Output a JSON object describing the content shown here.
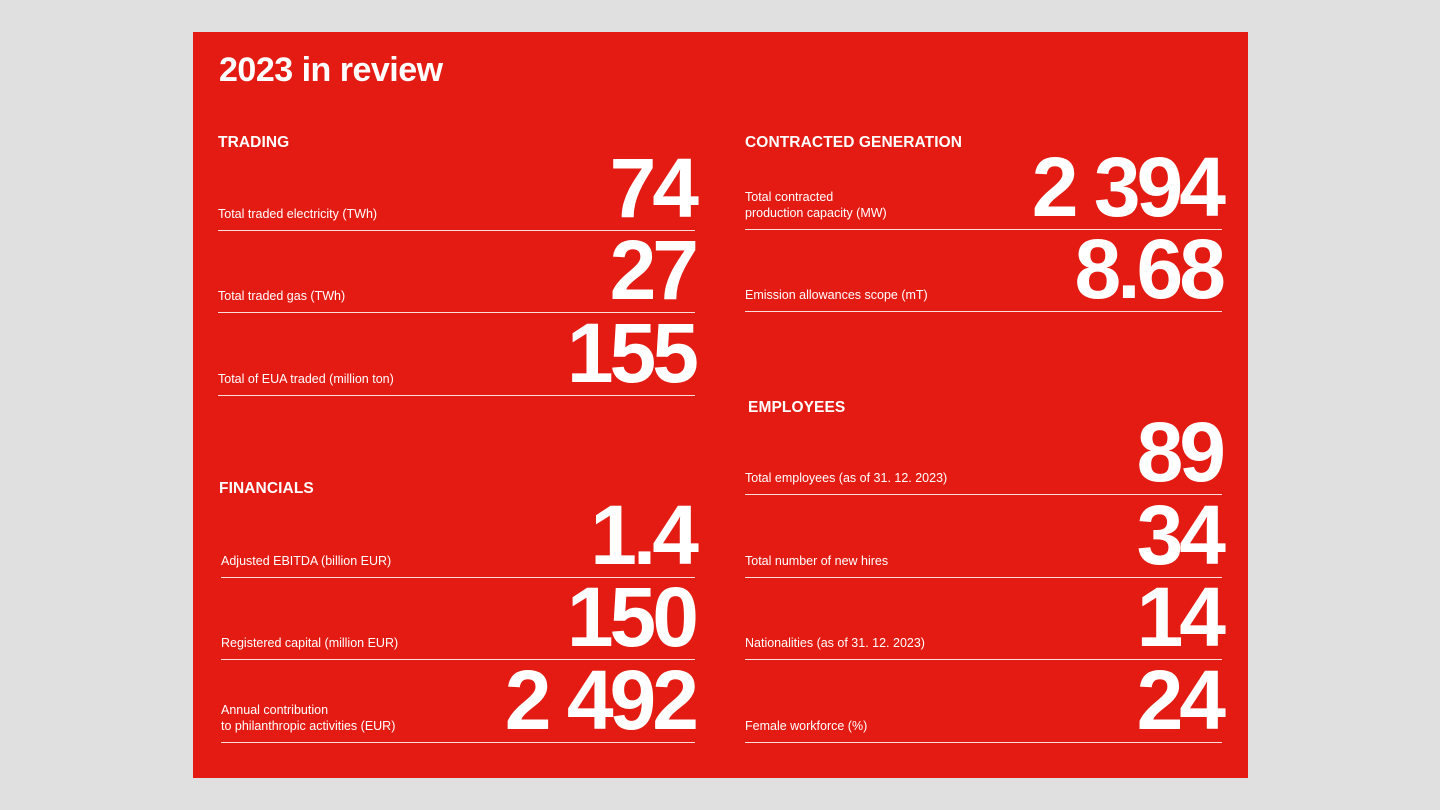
{
  "title": "2023 in review",
  "colors": {
    "panel_bg": "#e31b13",
    "page_bg": "#e0e0e0",
    "text": "#ffffff"
  },
  "trading": {
    "heading": "TRADING",
    "items": [
      {
        "label": "Total traded electricity (TWh)",
        "value": "74"
      },
      {
        "label": "Total traded gas (TWh)",
        "value": "27"
      },
      {
        "label": "Total of EUA traded (million ton)",
        "value": "155"
      }
    ]
  },
  "financials": {
    "heading": "FINANCIALS",
    "items": [
      {
        "label": "Adjusted EBITDA (billion EUR)",
        "value": "1.4"
      },
      {
        "label": "Registered capital (million EUR)",
        "value": "150"
      },
      {
        "label": "Annual contribution\nto philanthropic activities (EUR)",
        "value": "2 492"
      }
    ]
  },
  "generation": {
    "heading": "CONTRACTED GENERATION",
    "items": [
      {
        "label": "Total contracted\nproduction capacity (MW)",
        "value": "2 394"
      },
      {
        "label": "Emission allowances scope (mT)",
        "value": "8.68"
      }
    ]
  },
  "employees": {
    "heading": "EMPLOYEES",
    "items": [
      {
        "label": "Total employees (as of 31. 12. 2023)",
        "value": "89"
      },
      {
        "label": "Total number of new hires",
        "value": "34"
      },
      {
        "label": "Nationalities (as of 31. 12. 2023)",
        "value": "14"
      },
      {
        "label": "Female workforce (%)",
        "value": "24"
      }
    ]
  }
}
